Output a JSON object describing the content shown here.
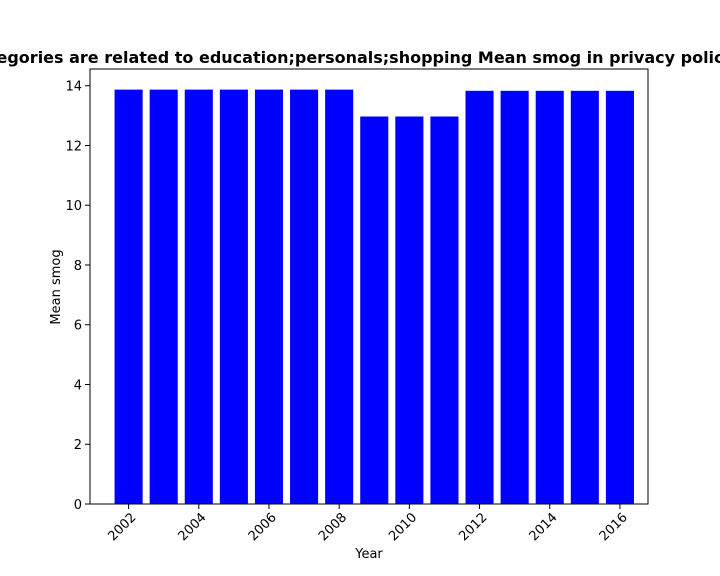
{
  "chart_data": {
    "type": "bar",
    "title": "Mean smog in privacy policies that categories are related to education;personals;shopping",
    "title_visible": "egories are related to education;personals;shopping Mean smog in privacy polic",
    "xlabel": "Year",
    "ylabel": "Mean smog",
    "categories": [
      2002,
      2003,
      2004,
      2005,
      2006,
      2007,
      2008,
      2009,
      2010,
      2011,
      2012,
      2013,
      2014,
      2015,
      2016
    ],
    "values": [
      13.87,
      13.87,
      13.87,
      13.87,
      13.87,
      13.87,
      13.87,
      12.97,
      12.97,
      12.97,
      13.83,
      13.83,
      13.83,
      13.83,
      13.83
    ],
    "xticks": [
      2002,
      2004,
      2006,
      2008,
      2010,
      2012,
      2014,
      2016
    ],
    "yticks": [
      0,
      2,
      4,
      6,
      8,
      10,
      12,
      14
    ],
    "ylim": [
      0,
      14.56
    ],
    "xlim": [
      2000.9,
      2016.8
    ],
    "bar_color": "#0000ff",
    "grid": false,
    "legend": "none"
  }
}
